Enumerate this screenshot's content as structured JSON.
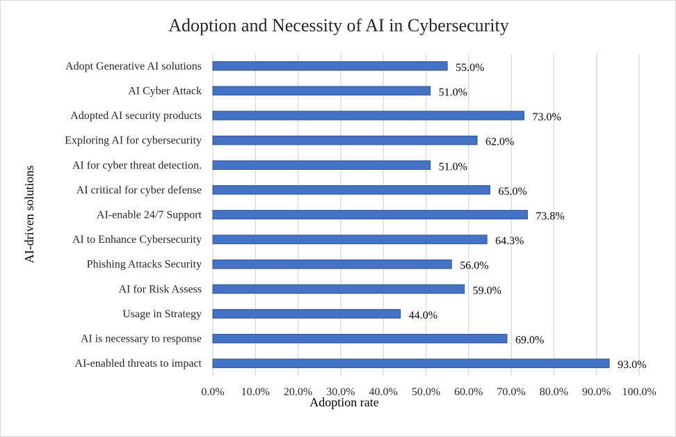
{
  "chart_data": {
    "type": "bar",
    "orientation": "horizontal",
    "title": "Adoption and Necessity of AI in Cybersecurity",
    "xlabel": "Adoption rate",
    "ylabel": "AI-driven solutions",
    "categories": [
      "Adopt Generative AI solutions",
      "AI Cyber Attack",
      "Adopted AI security products",
      "Exploring AI for cybersecurity",
      "AI for cyber threat detection.",
      "AI critical for cyber defense",
      "AI-enable 24/7 Support",
      "AI to Enhance Cybersecurity",
      "Phishing Attacks Security",
      "AI for Risk Assess",
      "Usage in Strategy",
      "AI is necessary to response",
      "AI-enabled threats to impact"
    ],
    "values": [
      55.0,
      51.0,
      73.0,
      62.0,
      51.0,
      65.0,
      73.8,
      64.3,
      56.0,
      59.0,
      44.0,
      69.0,
      93.0
    ],
    "value_labels": [
      "55.0%",
      "51.0%",
      "73.0%",
      "62.0%",
      "51.0%",
      "65.0%",
      "73.8%",
      "64.3%",
      "56.0%",
      "59.0%",
      "44.0%",
      "69.0%",
      "93.0%"
    ],
    "xlim": [
      0,
      100
    ],
    "x_ticks": [
      0,
      10,
      20,
      30,
      40,
      50,
      60,
      70,
      80,
      90,
      100
    ],
    "x_tick_labels": [
      "0.0%",
      "10.0%",
      "20.0%",
      "30.0%",
      "40.0%",
      "50.0%",
      "60.0%",
      "70.0%",
      "80.0%",
      "90.0%",
      "100.0%"
    ],
    "grid": "vertical",
    "legend": "none",
    "bar_color": "#4472c4",
    "bar_edge_color": "#2f528f"
  }
}
